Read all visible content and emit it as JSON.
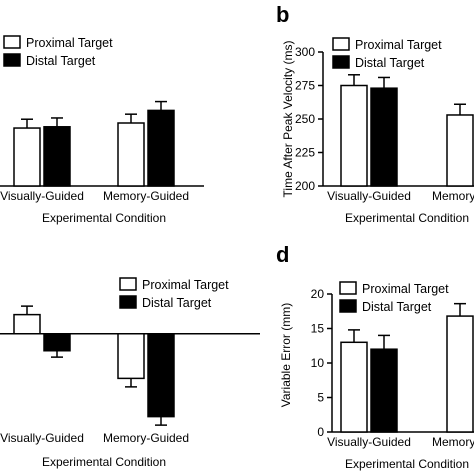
{
  "chart_data": [
    {
      "type": "bar",
      "panel_label": "",
      "categories": [
        "Visually-Guided",
        "Memory-Guided"
      ],
      "xlabel": "Experimental Condition",
      "ylabel": "",
      "yticks": [],
      "legend_position": "top-left",
      "series": [
        {
          "name": "Proximal Target",
          "fill": "#ffffff",
          "values": [
            0.46,
            0.5
          ],
          "errors": [
            0.07,
            0.07
          ]
        },
        {
          "name": "Distal Target",
          "fill": "#000000",
          "values": [
            0.47,
            0.6
          ],
          "errors": [
            0.07,
            0.07
          ]
        }
      ]
    },
    {
      "type": "bar",
      "panel_label": "b",
      "categories": [
        "Visually-Guided",
        "Memory-Guided"
      ],
      "xlabel": "Experimental Condition",
      "ylabel": "Time After Peak Velocity (ms)",
      "ylim": [
        200,
        300
      ],
      "yticks": [
        200,
        225,
        250,
        275,
        300
      ],
      "legend_position": "top-left",
      "series": [
        {
          "name": "Proximal Target",
          "fill": "#ffffff",
          "values": [
            275,
            253
          ],
          "errors": [
            8,
            8
          ]
        },
        {
          "name": "Distal Target",
          "fill": "#000000",
          "values": [
            273,
            null
          ],
          "errors": [
            8,
            null
          ]
        }
      ]
    },
    {
      "type": "bar",
      "panel_label": "",
      "categories": [
        "Visually-Guided",
        "Memory-Guided"
      ],
      "xlabel": "Experimental Condition",
      "ylabel": "",
      "yticks": [],
      "baseline": 0,
      "legend_position": "top-right",
      "series": [
        {
          "name": "Proximal Target",
          "fill": "#ffffff",
          "values": [
            0.18,
            -0.42
          ],
          "errors": [
            0.08,
            0.08
          ]
        },
        {
          "name": "Distal Target",
          "fill": "#000000",
          "values": [
            -0.16,
            -0.78
          ],
          "errors": [
            0.06,
            0.08
          ]
        }
      ]
    },
    {
      "type": "bar",
      "panel_label": "d",
      "categories": [
        "Visually-Guided",
        "Memory-Guided"
      ],
      "xlabel": "Experimental Condition",
      "ylabel": "Variable Error (mm)",
      "ylim": [
        0,
        20
      ],
      "yticks": [
        0,
        5,
        10,
        15,
        20
      ],
      "legend_position": "top-left",
      "series": [
        {
          "name": "Proximal Target",
          "fill": "#ffffff",
          "values": [
            13,
            16.8
          ],
          "errors": [
            1.8,
            1.8
          ]
        },
        {
          "name": "Distal Target",
          "fill": "#000000",
          "values": [
            12,
            null
          ],
          "errors": [
            2.0,
            null
          ]
        }
      ]
    }
  ]
}
